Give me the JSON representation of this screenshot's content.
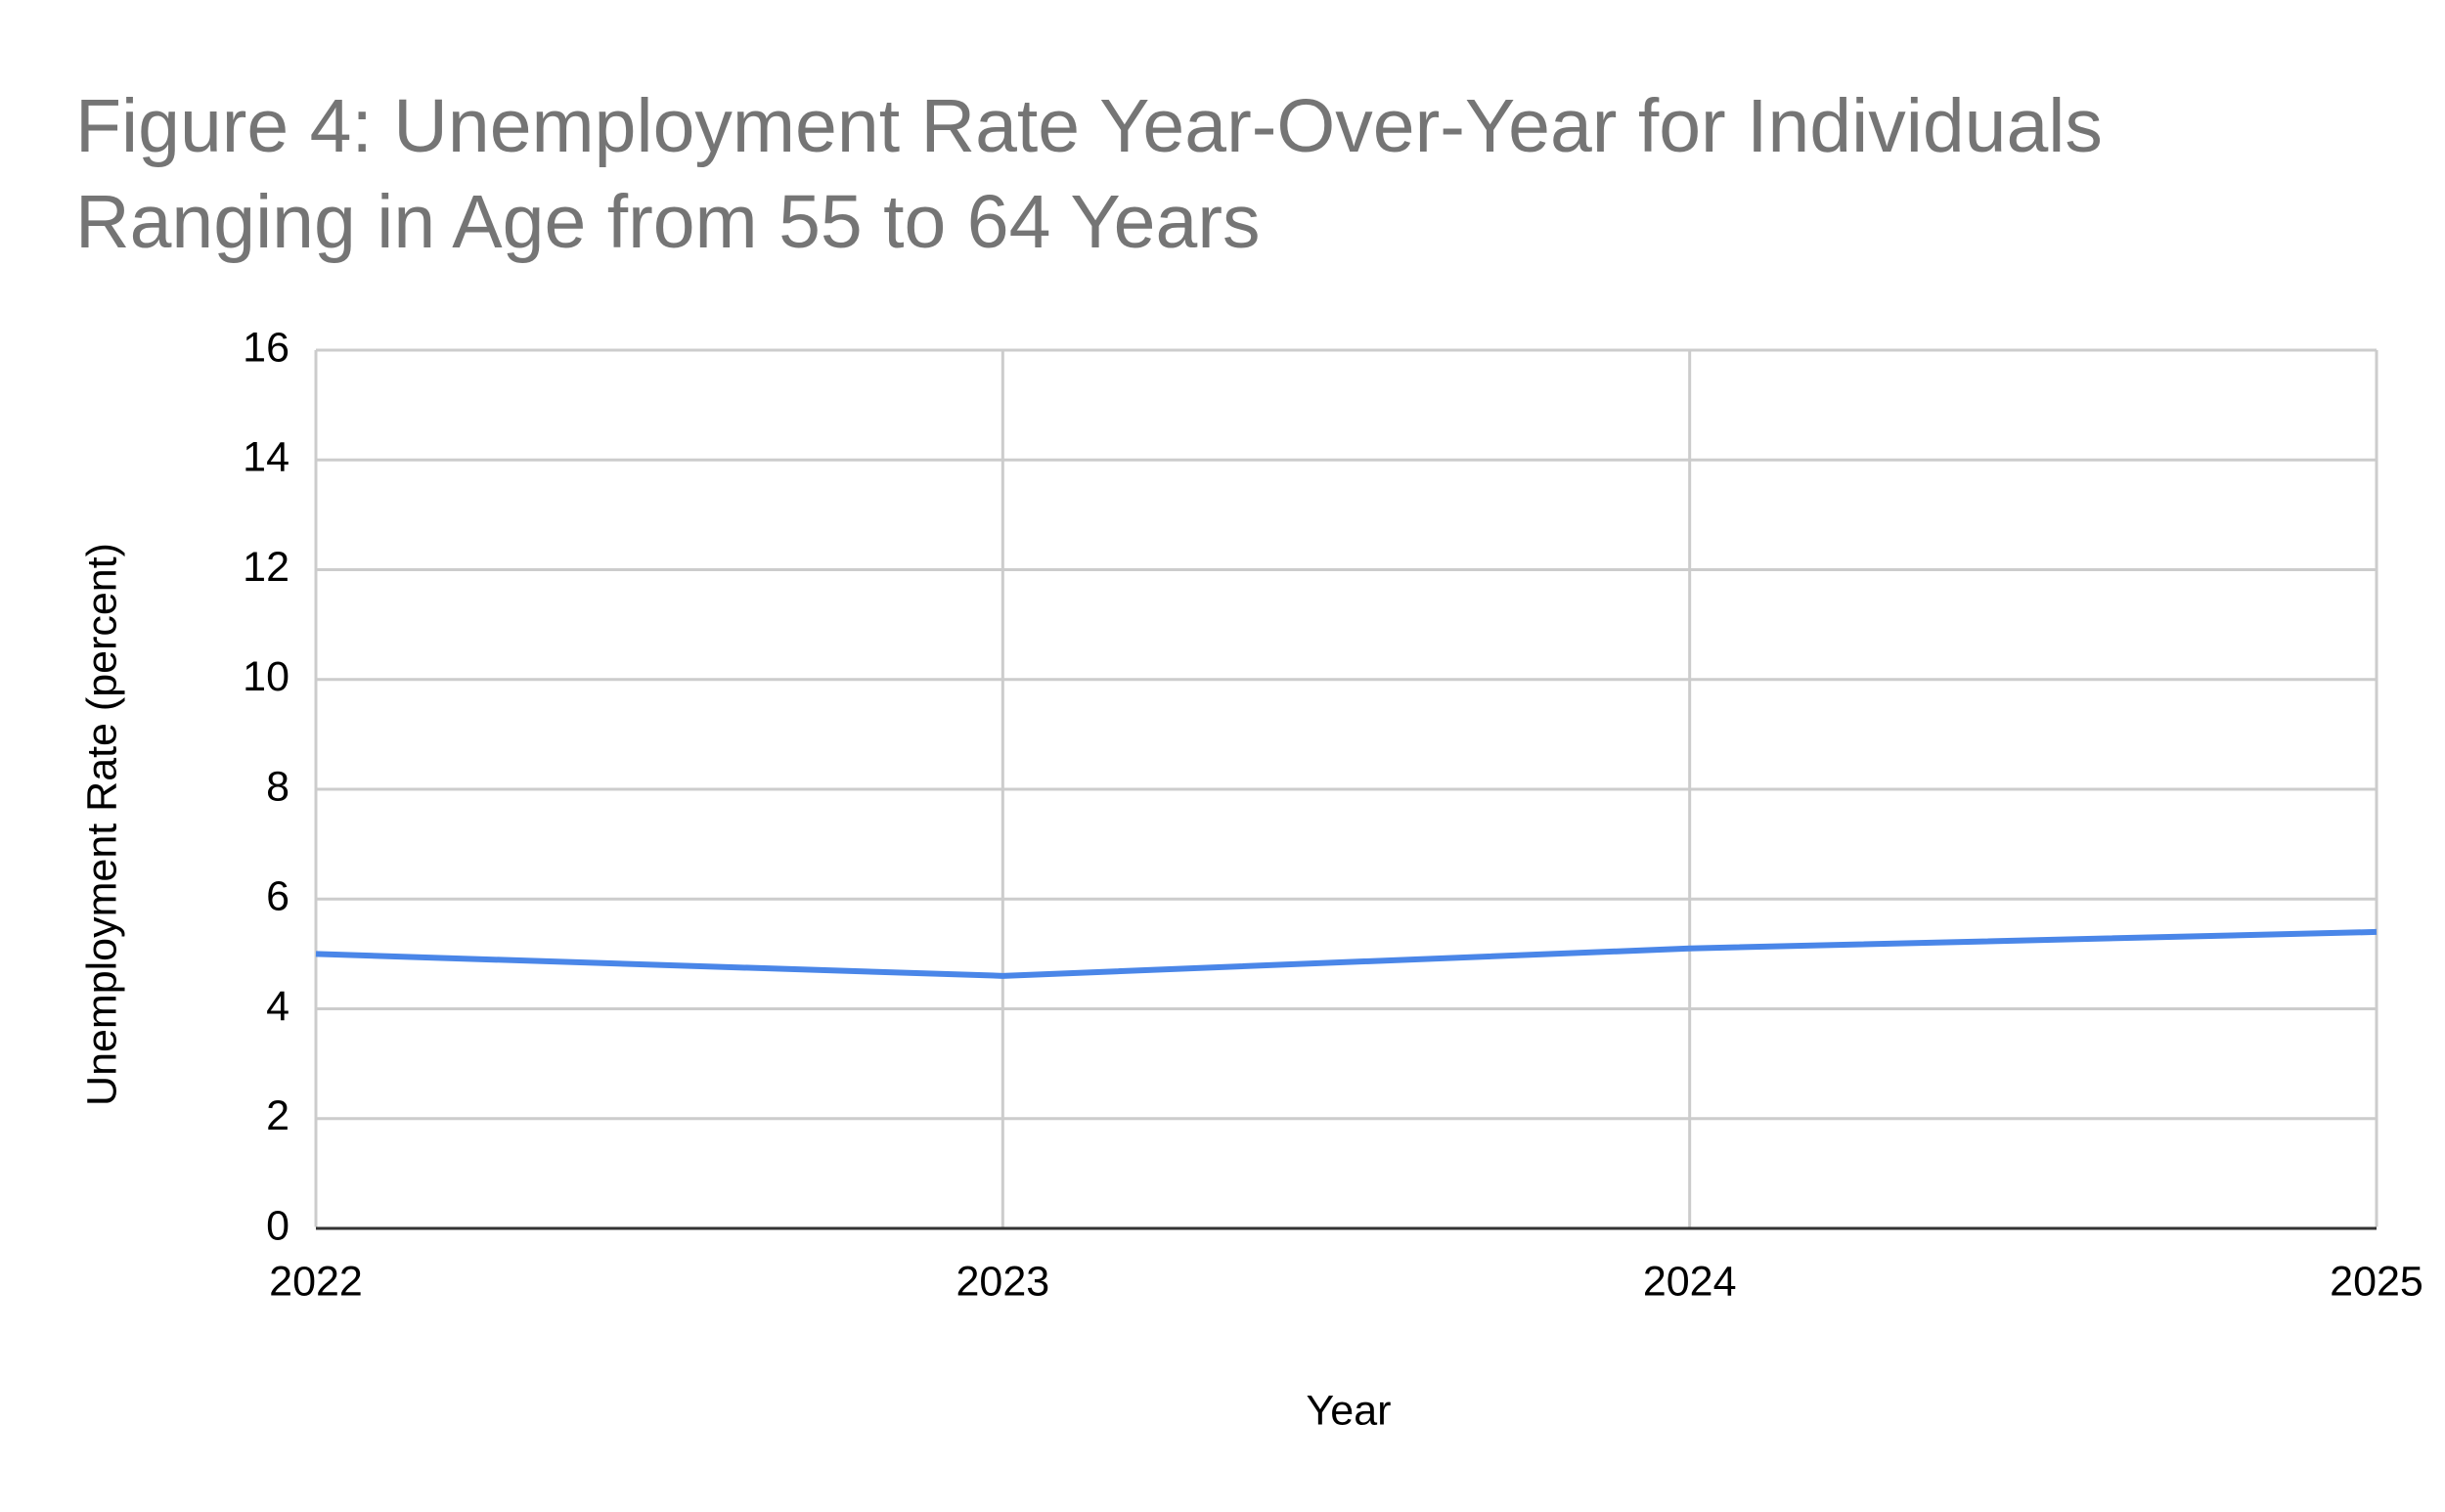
{
  "chart_data": {
    "type": "line",
    "title": "Figure 4: Unemployment Rate Year-Over-Year for Individuals Ranging in Age from 55 to 64 Years",
    "x_label": "Year",
    "y_label": "Unemployment Rate (percent)",
    "x": [
      2022,
      2023,
      2024,
      2025
    ],
    "series": [
      {
        "color": "#4a86e8",
        "values": [
          5.0,
          4.6,
          5.1,
          5.4
        ]
      }
    ],
    "xlim": [
      2022,
      2025
    ],
    "xticks": [
      2022,
      2023,
      2024,
      2025
    ],
    "ylim": [
      0,
      16
    ],
    "yticks": [
      0,
      2,
      4,
      6,
      8,
      10,
      12,
      14,
      16
    ],
    "grid": true
  }
}
